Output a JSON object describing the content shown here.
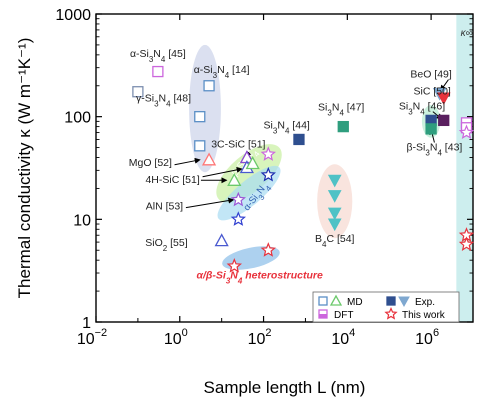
{
  "chart_data": {
    "type": "scatter",
    "xscale": "log",
    "yscale": "log",
    "xlim": [
      0.01,
      10000000
    ],
    "ylim": [
      1,
      1000
    ],
    "xlabel": "Sample length L (nm)",
    "ylabel": "Thermal conductivity κ (W m⁻¹K⁻¹)",
    "xticks": [
      {
        "value": 0.01,
        "base": "10",
        "exp": "−2"
      },
      {
        "value": 1,
        "base": "10",
        "exp": "0"
      },
      {
        "value": 100,
        "base": "10",
        "exp": "2"
      },
      {
        "value": 10000,
        "base": "10",
        "exp": "4"
      },
      {
        "value": 1000000,
        "base": "10",
        "exp": "6"
      }
    ],
    "yticks": [
      {
        "value": 1,
        "label": "1"
      },
      {
        "value": 10,
        "label": "10"
      },
      {
        "value": 100,
        "label": "100"
      },
      {
        "value": 1000,
        "label": "1000"
      }
    ],
    "band_label": "κ∞",
    "band_range": [
      4000000,
      10000000
    ],
    "colors": {
      "md_open": "#5b8fc6",
      "md_green": "#6cc96c",
      "exp_navy": "#2f4f8f",
      "exp_teal": "#2f9e7e",
      "exp_tri": "#4fc2c6",
      "dft": "#cc66dd",
      "this_work": "#e8323c",
      "band": "#cdeeee",
      "highlight": "#e8323c"
    },
    "series": [
      {
        "name": "MD",
        "marker": "open-square",
        "points": [
          {
            "x": 0.3,
            "y": 275,
            "color": "#cc66dd"
          },
          {
            "x": 0.1,
            "y": 175,
            "color": "#7d8fb0"
          },
          {
            "x": 5,
            "y": 200,
            "color": "#5b8fc6"
          },
          {
            "x": 3,
            "y": 100,
            "color": "#5b8fc6"
          },
          {
            "x": 3,
            "y": 52,
            "color": "#5b8fc6"
          }
        ]
      },
      {
        "name": "MD",
        "marker": "open-triangle",
        "points": [
          {
            "x": 5,
            "y": 38,
            "color": "#ff7777"
          },
          {
            "x": 40,
            "y": 40,
            "color": "#8c4ad0"
          },
          {
            "x": 40,
            "y": 32,
            "color": "#4a5ad0"
          },
          {
            "x": 20,
            "y": 24,
            "color": "#6cc96c"
          },
          {
            "x": 10,
            "y": 6.2,
            "color": "#4a5ad0"
          },
          {
            "x": 55,
            "y": 35,
            "color": "#6cc96c"
          }
        ]
      },
      {
        "name": "MD",
        "marker": "open-star",
        "points": [
          {
            "x": 25,
            "y": 15.5,
            "color": "#9b59d6"
          },
          {
            "x": 130,
            "y": 27,
            "color": "#1a2bb0"
          },
          {
            "x": 25,
            "y": 10,
            "color": "#2f3fd0"
          },
          {
            "x": 130,
            "y": 43,
            "color": "#cc66dd"
          }
        ]
      },
      {
        "name": "Exp.",
        "marker": "filled-square",
        "points": [
          {
            "x": 700,
            "y": 60,
            "color": "#2f4f8f"
          },
          {
            "x": 8000,
            "y": 80,
            "color": "#2f9e7e"
          },
          {
            "x": 1000000,
            "y": 92,
            "color": "#2f4f8f"
          },
          {
            "x": 1000000,
            "y": 76,
            "color": "#2f9e7e"
          },
          {
            "x": 2000000,
            "y": 92,
            "color": "#5a1f5f"
          }
        ]
      },
      {
        "name": "Exp.",
        "marker": "filled-triangle",
        "points": [
          {
            "x": 1600000,
            "y": 168,
            "color": "#7fa8d0"
          },
          {
            "x": 2000000,
            "y": 152,
            "color": "#e8323c"
          },
          {
            "x": 5000,
            "y": 24,
            "color": "#4fc2c6"
          },
          {
            "x": 5000,
            "y": 17,
            "color": "#4fc2c6"
          },
          {
            "x": 5000,
            "y": 11.5,
            "color": "#4fc2c6"
          },
          {
            "x": 5000,
            "y": 9,
            "color": "#4fc2c6"
          }
        ]
      },
      {
        "name": "DFT",
        "marker": "open-square",
        "points": [
          {
            "x": 7000000,
            "y": 87,
            "color": "#cc66dd"
          },
          {
            "x": 7000000,
            "y": 78,
            "color": "#cc66dd"
          }
        ]
      },
      {
        "name": "DFT",
        "marker": "open-star",
        "points": [
          {
            "x": 7000000,
            "y": 70,
            "color": "#cc66dd"
          }
        ]
      },
      {
        "name": "This work",
        "marker": "open-star",
        "points": [
          {
            "x": 20,
            "y": 3.5,
            "color": "#e8323c"
          },
          {
            "x": 130,
            "y": 5,
            "color": "#e8323c"
          },
          {
            "x": 7000000,
            "y": 7,
            "color": "#e8323c"
          },
          {
            "x": 7000000,
            "y": 5.7,
            "color": "#e8323c"
          }
        ]
      }
    ],
    "regions": [
      {
        "cx": 4,
        "cy": 120,
        "rx_dec": 0.38,
        "ry_dec": 0.62,
        "angle": 0,
        "fill": "#8899cc",
        "opacity": 0.3
      },
      {
        "cx": 45,
        "cy": 28,
        "rx_dec": 0.95,
        "ry_dec": 0.18,
        "angle": -40,
        "fill": "#c8f0a0",
        "opacity": 0.7
      },
      {
        "cx": 45,
        "cy": 18,
        "rx_dec": 0.95,
        "ry_dec": 0.12,
        "angle": -40,
        "fill": "#a8dcf2",
        "opacity": 0.7
      },
      {
        "cx": 50,
        "cy": 4.2,
        "rx_dec": 0.7,
        "ry_dec": 0.1,
        "angle": -12,
        "fill": "#4a9adc",
        "opacity": 0.45
      },
      {
        "cx": 5000,
        "cy": 15,
        "rx_dec": 0.42,
        "ry_dec": 0.36,
        "angle": 0,
        "fill": "#f6d8d0",
        "opacity": 0.7
      },
      {
        "cx": 1000000,
        "cy": 90,
        "rx_dec": 0.22,
        "ry_dec": 0.16,
        "angle": 0,
        "fill": "#a8e8c8",
        "opacity": 0.6
      }
    ],
    "diag_labels": [
      {
        "x": 22,
        "y": 26,
        "angle": -52,
        "parts": [
          {
            "t": "β-Si",
            "sub": false
          },
          {
            "t": "3",
            "sub": true
          },
          {
            "t": "N",
            "sub": false
          },
          {
            "t": "4",
            "sub": true
          }
        ],
        "color": "#ffffff"
      },
      {
        "x": 42,
        "y": 12,
        "angle": -52,
        "parts": [
          {
            "t": "α-Si",
            "sub": false
          },
          {
            "t": "3",
            "sub": true
          },
          {
            "t": "N",
            "sub": false
          },
          {
            "t": "4",
            "sub": true
          }
        ],
        "color": "#2f5fb0"
      }
    ],
    "annotations": [
      {
        "x": 0.3,
        "y": 380,
        "anchor": "middle",
        "parts": [
          {
            "t": "α-Si",
            "sub": false
          },
          {
            "t": "3",
            "sub": true
          },
          {
            "t": "N",
            "sub": false
          },
          {
            "t": "4",
            "sub": true
          },
          {
            "t": " [45]",
            "sub": false
          }
        ]
      },
      {
        "x": 0.09,
        "y": 140,
        "anchor": "start",
        "parts": [
          {
            "t": "γ-Si",
            "sub": false
          },
          {
            "t": "3",
            "sub": true
          },
          {
            "t": "N",
            "sub": false
          },
          {
            "t": "4",
            "sub": true
          },
          {
            "t": " [48]",
            "sub": false
          }
        ]
      },
      {
        "x": 10,
        "y": 265,
        "anchor": "middle",
        "parts": [
          {
            "t": "α-Si",
            "sub": false
          },
          {
            "t": "3",
            "sub": true
          },
          {
            "t": "N",
            "sub": false
          },
          {
            "t": "4",
            "sub": true
          },
          {
            "t": " [14]",
            "sub": false
          }
        ]
      },
      {
        "x": 25,
        "y": 50,
        "anchor": "middle",
        "parts": [
          {
            "t": "3C-SiC [51]",
            "sub": false
          }
        ]
      },
      {
        "x": 100,
        "y": 77,
        "anchor": "start",
        "parts": [
          {
            "t": "Si",
            "sub": false
          },
          {
            "t": "3",
            "sub": true
          },
          {
            "t": "N",
            "sub": false
          },
          {
            "t": "4",
            "sub": true
          },
          {
            "t": " [44]",
            "sub": false
          }
        ]
      },
      {
        "x": 2000,
        "y": 115,
        "anchor": "start",
        "parts": [
          {
            "t": "Si",
            "sub": false
          },
          {
            "t": "3",
            "sub": true
          },
          {
            "t": "N",
            "sub": false
          },
          {
            "t": "4",
            "sub": true
          },
          {
            "t": " [47]",
            "sub": false
          }
        ]
      },
      {
        "x": 0.65,
        "y": 33,
        "anchor": "end",
        "parts": [
          {
            "t": "MgO [52]",
            "sub": false
          }
        ]
      },
      {
        "x": 3,
        "y": 22.5,
        "anchor": "end",
        "parts": [
          {
            "t": "4H-SiC [51]",
            "sub": false
          }
        ]
      },
      {
        "x": 1.2,
        "y": 12.5,
        "anchor": "end",
        "parts": [
          {
            "t": "AlN [53]",
            "sub": false
          }
        ]
      },
      {
        "x": 0.15,
        "y": 5.5,
        "anchor": "start",
        "parts": [
          {
            "t": "SiO",
            "sub": false
          },
          {
            "t": "2",
            "sub": true
          },
          {
            "t": " [55]",
            "sub": false
          }
        ]
      },
      {
        "x": 5000,
        "y": 6.0,
        "anchor": "middle",
        "parts": [
          {
            "t": "B",
            "sub": false
          },
          {
            "t": "4",
            "sub": true
          },
          {
            "t": "C [54]",
            "sub": false
          }
        ]
      },
      {
        "x": 1000000,
        "y": 240,
        "anchor": "middle",
        "parts": [
          {
            "t": "BeO [49]",
            "sub": false
          }
        ]
      },
      {
        "x": 380000,
        "y": 165,
        "anchor": "start",
        "parts": [
          {
            "t": "SiC [50]",
            "sub": false
          }
        ]
      },
      {
        "x": 170000,
        "y": 118,
        "anchor": "start",
        "parts": [
          {
            "t": "Si",
            "sub": false
          },
          {
            "t": "3",
            "sub": true
          },
          {
            "t": "N",
            "sub": false
          },
          {
            "t": "4",
            "sub": true
          },
          {
            "t": " [46]",
            "sub": false
          }
        ]
      },
      {
        "x": 1200000,
        "y": 47,
        "anchor": "middle",
        "parts": [
          {
            "t": "β-Si",
            "sub": false
          },
          {
            "t": "3",
            "sub": true
          },
          {
            "t": "N",
            "sub": false
          },
          {
            "t": "4",
            "sub": true
          },
          {
            "t": " [43]",
            "sub": false
          }
        ]
      }
    ],
    "highlight_label": {
      "x": 2.5,
      "y": 2.65,
      "parts": [
        {
          "t": "α/β-Si",
          "sub": false
        },
        {
          "t": "3",
          "sub": true
        },
        {
          "t": "N",
          "sub": false
        },
        {
          "t": "4",
          "sub": true
        },
        {
          "t": " heterostructure",
          "sub": false
        }
      ]
    },
    "arrows": [
      {
        "x1": 0.75,
        "y1": 34,
        "x2": 3,
        "y2": 38
      },
      {
        "x1": 3.2,
        "y1": 24,
        "x2": 13,
        "y2": 24
      },
      {
        "x1": 3.5,
        "y1": 26,
        "x2": 30,
        "y2": 31
      },
      {
        "x1": 1.4,
        "y1": 13,
        "x2": 19,
        "y2": 15.5
      },
      {
        "x1": 45,
        "y1": 45,
        "x2": 38,
        "y2": 41
      },
      {
        "x1": 2600000,
        "y1": 230,
        "x2": 1700000,
        "y2": 180
      },
      {
        "x1": 1200000,
        "y1": 56,
        "x2": 1000000,
        "y2": 75
      },
      {
        "x1": 1100000,
        "y1": 112,
        "x2": 1800000,
        "y2": 95
      }
    ],
    "legend": {
      "position": "bottom-right",
      "rows": [
        {
          "markers": [
            {
              "shape": "open-square",
              "color": "#5b8fc6"
            },
            {
              "shape": "open-triangle",
              "color": "#6cc96c"
            }
          ],
          "label": "MD"
        },
        {
          "markers": [
            {
              "shape": "filled-square",
              "color": "#2f4f8f"
            },
            {
              "shape": "filled-triangle",
              "color": "#7fa8d0"
            }
          ],
          "label": "Exp."
        },
        {
          "markers": [
            {
              "shape": "half-square",
              "color": "#cc66dd"
            }
          ],
          "label": "DFT"
        },
        {
          "markers": [
            {
              "shape": "open-star",
              "color": "#e8323c"
            }
          ],
          "label": "This work"
        }
      ]
    }
  }
}
